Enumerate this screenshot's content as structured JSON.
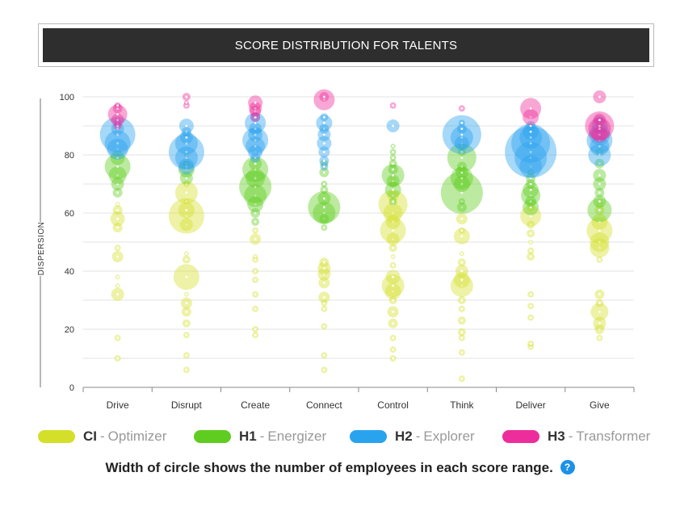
{
  "chart_data": {
    "type": "bubble-strip",
    "title": "SCORE DISTRIBUTION FOR TALENTS",
    "ylabel": "DISPERSION",
    "xlabel": "",
    "ylim": [
      0,
      100
    ],
    "yticks": [
      0,
      20,
      40,
      60,
      80,
      100
    ],
    "grid": true,
    "categories": [
      "Drive",
      "Disrupt",
      "Create",
      "Connect",
      "Control",
      "Think",
      "Deliver",
      "Give"
    ],
    "series": [
      {
        "code": "CI",
        "name": "Optimizer",
        "color": "#d4df2a",
        "points": [
          [
            0,
            10,
            4
          ],
          [
            0,
            17,
            4
          ],
          [
            0,
            32,
            8
          ],
          [
            0,
            35,
            3
          ],
          [
            0,
            38,
            3
          ],
          [
            0,
            45,
            7
          ],
          [
            0,
            48,
            4
          ],
          [
            0,
            55,
            6
          ],
          [
            0,
            58,
            9
          ],
          [
            0,
            61,
            6
          ],
          [
            0,
            63,
            3
          ],
          [
            1,
            6,
            4
          ],
          [
            1,
            11,
            4
          ],
          [
            1,
            18,
            4
          ],
          [
            1,
            22,
            5
          ],
          [
            1,
            26,
            6
          ],
          [
            1,
            29,
            7
          ],
          [
            1,
            32,
            3
          ],
          [
            1,
            38,
            16
          ],
          [
            1,
            44,
            5
          ],
          [
            1,
            46,
            3
          ],
          [
            1,
            56,
            8
          ],
          [
            1,
            59,
            22
          ],
          [
            1,
            61,
            10
          ],
          [
            1,
            64,
            3
          ],
          [
            1,
            67,
            14
          ],
          [
            1,
            70,
            4
          ],
          [
            2,
            18,
            4
          ],
          [
            2,
            20,
            4
          ],
          [
            2,
            27,
            4
          ],
          [
            2,
            32,
            4
          ],
          [
            2,
            37,
            4
          ],
          [
            2,
            40,
            4
          ],
          [
            2,
            44,
            4
          ],
          [
            2,
            45,
            3
          ],
          [
            2,
            51,
            7
          ],
          [
            2,
            54,
            4
          ],
          [
            3,
            6,
            4
          ],
          [
            3,
            11,
            4
          ],
          [
            3,
            21,
            4
          ],
          [
            3,
            27,
            4
          ],
          [
            3,
            29,
            4
          ],
          [
            3,
            31,
            7
          ],
          [
            3,
            36,
            7
          ],
          [
            3,
            39,
            8
          ],
          [
            3,
            41,
            8
          ],
          [
            3,
            43,
            6
          ],
          [
            4,
            10,
            4
          ],
          [
            4,
            13,
            4
          ],
          [
            4,
            17,
            4
          ],
          [
            4,
            22,
            6
          ],
          [
            4,
            26,
            7
          ],
          [
            4,
            30,
            5
          ],
          [
            4,
            33,
            10
          ],
          [
            4,
            35,
            14
          ],
          [
            4,
            38,
            9
          ],
          [
            4,
            42,
            4
          ],
          [
            4,
            45,
            3
          ],
          [
            4,
            48,
            5
          ],
          [
            4,
            51,
            8
          ],
          [
            4,
            54,
            16
          ],
          [
            4,
            57,
            9
          ],
          [
            4,
            60,
            12
          ],
          [
            4,
            63,
            18
          ],
          [
            4,
            66,
            7
          ],
          [
            4,
            70,
            4
          ],
          [
            4,
            72,
            3
          ],
          [
            5,
            3,
            4
          ],
          [
            5,
            12,
            4
          ],
          [
            5,
            17,
            4
          ],
          [
            5,
            19,
            5
          ],
          [
            5,
            23,
            5
          ],
          [
            5,
            27,
            4
          ],
          [
            5,
            30,
            5
          ],
          [
            5,
            35,
            14
          ],
          [
            5,
            37,
            10
          ],
          [
            5,
            40,
            8
          ],
          [
            5,
            43,
            5
          ],
          [
            5,
            46,
            3
          ],
          [
            5,
            52,
            10
          ],
          [
            5,
            54,
            4
          ],
          [
            5,
            58,
            7
          ],
          [
            6,
            14,
            4
          ],
          [
            6,
            15,
            4
          ],
          [
            6,
            24,
            4
          ],
          [
            6,
            28,
            4
          ],
          [
            6,
            32,
            4
          ],
          [
            6,
            45,
            5
          ],
          [
            6,
            47,
            4
          ],
          [
            6,
            50,
            3
          ],
          [
            6,
            53,
            5
          ],
          [
            6,
            56,
            5
          ],
          [
            6,
            59,
            13
          ],
          [
            6,
            62,
            5
          ],
          [
            7,
            17,
            4
          ],
          [
            7,
            20,
            6
          ],
          [
            7,
            22,
            8
          ],
          [
            7,
            26,
            11
          ],
          [
            7,
            29,
            5
          ],
          [
            7,
            32,
            6
          ],
          [
            7,
            44,
            4
          ],
          [
            7,
            48,
            12
          ],
          [
            7,
            50,
            12
          ],
          [
            7,
            54,
            16
          ],
          [
            7,
            57,
            10
          ],
          [
            7,
            61,
            6
          ],
          [
            7,
            63,
            4
          ]
        ]
      },
      {
        "code": "H1",
        "name": "Energizer",
        "color": "#5fcd1f",
        "points": [
          [
            0,
            67,
            6
          ],
          [
            0,
            70,
            8
          ],
          [
            0,
            73,
            11
          ],
          [
            0,
            76,
            16
          ],
          [
            0,
            79,
            9
          ],
          [
            1,
            72,
            8
          ],
          [
            1,
            75,
            10
          ],
          [
            1,
            77,
            4
          ],
          [
            1,
            80,
            3
          ],
          [
            2,
            57,
            5
          ],
          [
            2,
            60,
            6
          ],
          [
            2,
            63,
            10
          ],
          [
            2,
            66,
            14
          ],
          [
            2,
            69,
            20
          ],
          [
            2,
            72,
            12
          ],
          [
            2,
            75,
            16
          ],
          [
            2,
            77,
            8
          ],
          [
            3,
            55,
            4
          ],
          [
            3,
            58,
            6
          ],
          [
            3,
            60,
            14
          ],
          [
            3,
            62,
            20
          ],
          [
            3,
            65,
            8
          ],
          [
            3,
            68,
            5
          ],
          [
            3,
            70,
            4
          ],
          [
            3,
            74,
            6
          ],
          [
            3,
            77,
            5
          ],
          [
            4,
            64,
            5
          ],
          [
            4,
            68,
            10
          ],
          [
            4,
            71,
            8
          ],
          [
            4,
            73,
            14
          ],
          [
            4,
            75,
            6
          ],
          [
            4,
            77,
            5
          ],
          [
            4,
            79,
            4
          ],
          [
            4,
            81,
            4
          ],
          [
            4,
            83,
            3
          ],
          [
            5,
            62,
            6
          ],
          [
            5,
            64,
            4
          ],
          [
            5,
            67,
            26
          ],
          [
            5,
            70,
            10
          ],
          [
            5,
            72,
            14
          ],
          [
            5,
            74,
            8
          ],
          [
            5,
            76,
            6
          ],
          [
            5,
            79,
            18
          ],
          [
            5,
            81,
            5
          ],
          [
            5,
            83,
            4
          ],
          [
            6,
            62,
            10
          ],
          [
            6,
            64,
            7
          ],
          [
            6,
            66,
            12
          ],
          [
            6,
            68,
            10
          ],
          [
            6,
            70,
            6
          ],
          [
            6,
            72,
            6
          ],
          [
            6,
            74,
            4
          ],
          [
            7,
            61,
            15
          ],
          [
            7,
            64,
            8
          ],
          [
            7,
            67,
            6
          ],
          [
            7,
            70,
            8
          ],
          [
            7,
            73,
            8
          ],
          [
            7,
            77,
            6
          ],
          [
            7,
            81,
            5
          ]
        ]
      },
      {
        "code": "H2",
        "name": "Explorer",
        "color": "#2aa3ef",
        "points": [
          [
            0,
            82,
            13
          ],
          [
            0,
            84,
            16
          ],
          [
            0,
            87,
            22
          ],
          [
            0,
            89,
            8
          ],
          [
            0,
            91,
            5
          ],
          [
            1,
            76,
            10
          ],
          [
            1,
            79,
            14
          ],
          [
            1,
            81,
            22
          ],
          [
            1,
            84,
            14
          ],
          [
            1,
            86,
            8
          ],
          [
            1,
            88,
            6
          ],
          [
            1,
            90,
            9
          ],
          [
            2,
            79,
            6
          ],
          [
            2,
            81,
            9
          ],
          [
            2,
            83,
            12
          ],
          [
            2,
            85,
            16
          ],
          [
            2,
            87,
            9
          ],
          [
            2,
            89,
            8
          ],
          [
            2,
            91,
            13
          ],
          [
            2,
            93,
            6
          ],
          [
            3,
            76,
            5
          ],
          [
            3,
            78,
            6
          ],
          [
            3,
            81,
            7
          ],
          [
            3,
            84,
            9
          ],
          [
            3,
            87,
            8
          ],
          [
            3,
            89,
            6
          ],
          [
            3,
            91,
            10
          ],
          [
            3,
            93,
            5
          ],
          [
            4,
            90,
            8
          ],
          [
            5,
            84,
            9
          ],
          [
            5,
            86,
            14
          ],
          [
            5,
            87,
            24
          ],
          [
            5,
            89,
            6
          ],
          [
            5,
            91,
            4
          ],
          [
            6,
            76,
            14
          ],
          [
            6,
            79,
            20
          ],
          [
            6,
            81,
            32
          ],
          [
            6,
            84,
            24
          ],
          [
            6,
            86,
            14
          ],
          [
            6,
            88,
            10
          ],
          [
            6,
            90,
            6
          ],
          [
            7,
            80,
            14
          ],
          [
            7,
            83,
            12
          ],
          [
            7,
            85,
            16
          ],
          [
            7,
            87,
            13
          ],
          [
            7,
            90,
            10
          ],
          [
            7,
            92,
            6
          ]
        ]
      },
      {
        "code": "H3",
        "name": "Transformer",
        "color": "#ee2d9c",
        "points": [
          [
            0,
            90,
            5
          ],
          [
            0,
            92,
            8
          ],
          [
            0,
            94,
            12
          ],
          [
            0,
            96,
            6
          ],
          [
            0,
            97,
            4
          ],
          [
            1,
            97,
            4
          ],
          [
            1,
            98,
            3
          ],
          [
            1,
            100,
            5
          ],
          [
            2,
            93,
            6
          ],
          [
            2,
            95,
            7
          ],
          [
            2,
            96,
            8
          ],
          [
            2,
            98,
            9
          ],
          [
            3,
            99,
            13
          ],
          [
            3,
            100,
            6
          ],
          [
            4,
            97,
            4
          ],
          [
            5,
            96,
            4
          ],
          [
            6,
            93,
            10
          ],
          [
            6,
            96,
            13
          ],
          [
            7,
            87,
            10
          ],
          [
            7,
            89,
            14
          ],
          [
            7,
            90,
            18
          ],
          [
            7,
            92,
            8
          ],
          [
            7,
            100,
            8
          ]
        ]
      }
    ]
  },
  "legend": [
    {
      "code": "CI",
      "sep": "-",
      "name": "Optimizer",
      "color": "#d4df2a"
    },
    {
      "code": "H1",
      "sep": "-",
      "name": "Energizer",
      "color": "#5fcd1f"
    },
    {
      "code": "H2",
      "sep": "-",
      "name": "Explorer",
      "color": "#2aa3ef"
    },
    {
      "code": "H3",
      "sep": "-",
      "name": "Transformer",
      "color": "#ee2d9c"
    }
  ],
  "footnote": {
    "text": "Width of circle shows the number of employees in each score range.",
    "help_glyph": "?"
  }
}
